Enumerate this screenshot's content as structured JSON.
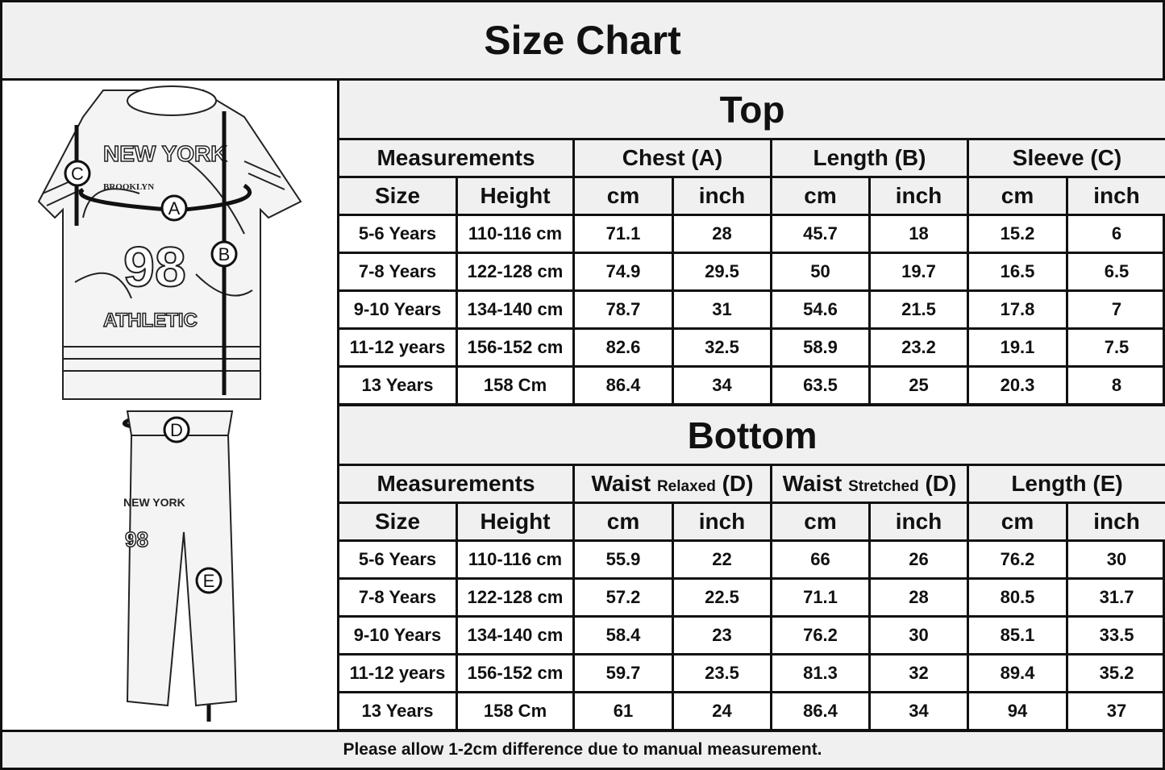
{
  "title": "Size Chart",
  "footer": "Please allow 1-2cm difference due to manual measurement.",
  "diagram": {
    "labels": [
      "A",
      "B",
      "C",
      "D",
      "E"
    ],
    "shirt_text": [
      "NEW YORK",
      "BROOKLYN",
      "98",
      "ATHLETIC"
    ],
    "pants_text": [
      "NEW YORK",
      "98"
    ]
  },
  "top": {
    "section": "Top",
    "headers": [
      "Measurements",
      "Chest (A)",
      "Length (B)",
      "Sleeve (C)"
    ],
    "sub": [
      "Size",
      "Height",
      "cm",
      "inch",
      "cm",
      "inch",
      "cm",
      "inch"
    ],
    "rows": [
      [
        "5-6 Years",
        "110-116 cm",
        "71.1",
        "28",
        "45.7",
        "18",
        "15.2",
        "6"
      ],
      [
        "7-8 Years",
        "122-128 cm",
        "74.9",
        "29.5",
        "50",
        "19.7",
        "16.5",
        "6.5"
      ],
      [
        "9-10 Years",
        "134-140 cm",
        "78.7",
        "31",
        "54.6",
        "21.5",
        "17.8",
        "7"
      ],
      [
        "11-12 years",
        "156-152 cm",
        "82.6",
        "32.5",
        "58.9",
        "23.2",
        "19.1",
        "7.5"
      ],
      [
        "13 Years",
        "158 Cm",
        "86.4",
        "34",
        "63.5",
        "25",
        "20.3",
        "8"
      ]
    ]
  },
  "bottom": {
    "section": "Bottom",
    "headers": [
      {
        "main": "Measurements"
      },
      {
        "main": "Waist",
        "qual": "Relaxed",
        "tag": "(D)"
      },
      {
        "main": "Waist",
        "qual": "Stretched",
        "tag": "(D)"
      },
      {
        "main": "Length (E)"
      }
    ],
    "sub": [
      "Size",
      "Height",
      "cm",
      "inch",
      "cm",
      "inch",
      "cm",
      "inch"
    ],
    "rows": [
      [
        "5-6 Years",
        "110-116 cm",
        "55.9",
        "22",
        "66",
        "26",
        "76.2",
        "30"
      ],
      [
        "7-8 Years",
        "122-128 cm",
        "57.2",
        "22.5",
        "71.1",
        "28",
        "80.5",
        "31.7"
      ],
      [
        "9-10 Years",
        "134-140 cm",
        "58.4",
        "23",
        "76.2",
        "30",
        "85.1",
        "33.5"
      ],
      [
        "11-12 years",
        "156-152 cm",
        "59.7",
        "23.5",
        "81.3",
        "32",
        "89.4",
        "35.2"
      ],
      [
        "13 Years",
        "158 Cm",
        "61",
        "24",
        "86.4",
        "34",
        "94",
        "37"
      ]
    ]
  }
}
